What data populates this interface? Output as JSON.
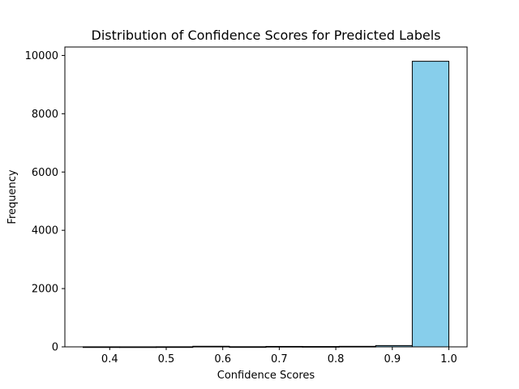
{
  "chart_data": {
    "type": "bar",
    "title": "Distribution of Confidence Scores for Predicted Labels",
    "xlabel": "Confidence Scores",
    "ylabel": "Frequency",
    "bar_color": "#87ceeb",
    "edge_color": "#000000",
    "bins": [
      {
        "start": 0.353,
        "end": 0.4177,
        "count": 2
      },
      {
        "start": 0.4177,
        "end": 0.4824,
        "count": 1
      },
      {
        "start": 0.4824,
        "end": 0.5471,
        "count": 3
      },
      {
        "start": 0.5471,
        "end": 0.6118,
        "count": 20
      },
      {
        "start": 0.6118,
        "end": 0.6765,
        "count": 5
      },
      {
        "start": 0.6765,
        "end": 0.7412,
        "count": 15
      },
      {
        "start": 0.7412,
        "end": 0.8059,
        "count": 12
      },
      {
        "start": 0.8059,
        "end": 0.8706,
        "count": 18
      },
      {
        "start": 0.8706,
        "end": 0.9353,
        "count": 45
      },
      {
        "start": 0.9353,
        "end": 1.0,
        "count": 9800
      }
    ],
    "xlim": [
      0.3207,
      1.0323
    ],
    "ylim": [
      0,
      10290
    ],
    "xticks": [
      0.4,
      0.5,
      0.6,
      0.7,
      0.8,
      0.9,
      1.0
    ],
    "xtick_labels": [
      "0.4",
      "0.5",
      "0.6",
      "0.7",
      "0.8",
      "0.9",
      "1.0"
    ],
    "yticks": [
      0,
      2000,
      4000,
      6000,
      8000,
      10000
    ],
    "ytick_labels": [
      "0",
      "2000",
      "4000",
      "6000",
      "8000",
      "10000"
    ],
    "grid": false,
    "legend": "none"
  }
}
